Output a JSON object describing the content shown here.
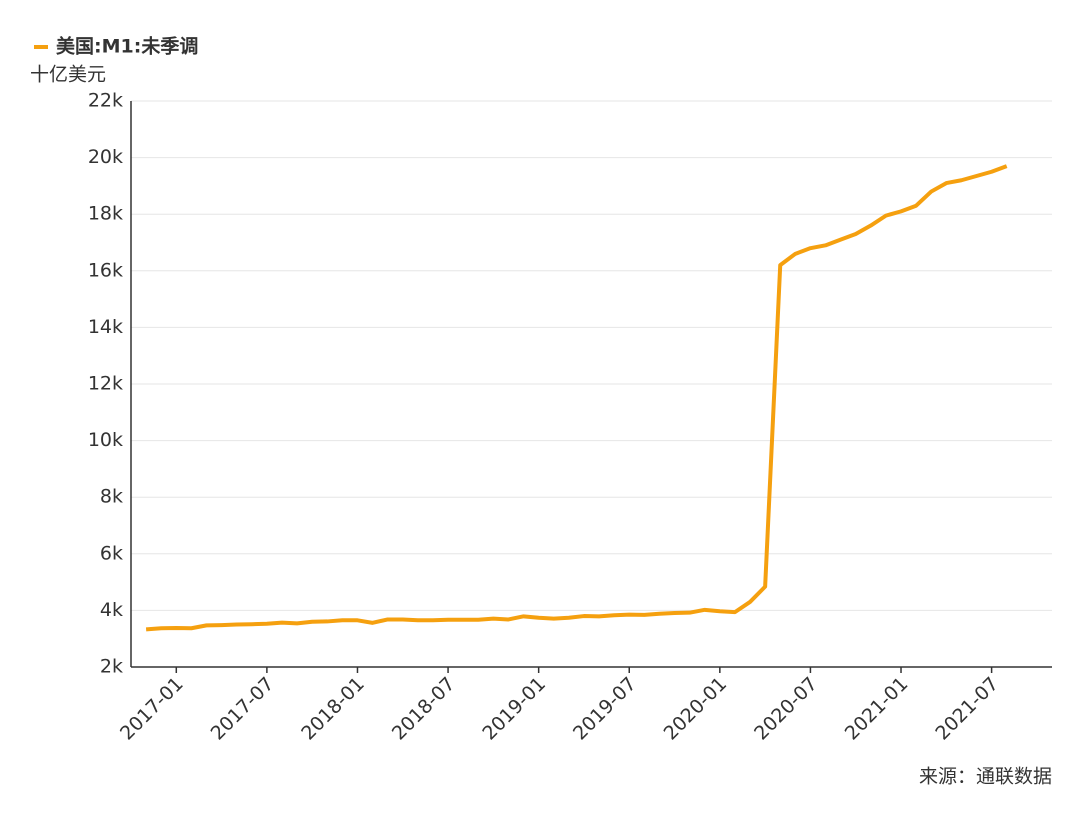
{
  "chart_data": {
    "type": "line",
    "legend_label": "美国:M1:未季调",
    "unit": "十亿美元",
    "source": "来源：通联数据",
    "x": [
      "2016-11",
      "2016-12",
      "2017-01",
      "2017-02",
      "2017-03",
      "2017-04",
      "2017-05",
      "2017-06",
      "2017-07",
      "2017-08",
      "2017-09",
      "2017-10",
      "2017-11",
      "2017-12",
      "2018-01",
      "2018-02",
      "2018-03",
      "2018-04",
      "2018-05",
      "2018-06",
      "2018-07",
      "2018-08",
      "2018-09",
      "2018-10",
      "2018-11",
      "2018-12",
      "2019-01",
      "2019-02",
      "2019-03",
      "2019-04",
      "2019-05",
      "2019-06",
      "2019-07",
      "2019-08",
      "2019-09",
      "2019-10",
      "2019-11",
      "2019-12",
      "2020-01",
      "2020-02",
      "2020-03",
      "2020-04",
      "2020-05",
      "2020-06",
      "2020-07",
      "2020-08",
      "2020-09",
      "2020-10",
      "2020-11",
      "2020-12",
      "2021-01",
      "2021-02",
      "2021-03",
      "2021-04",
      "2021-05",
      "2021-06",
      "2021-07",
      "2021-08"
    ],
    "series": [
      {
        "name": "美国:M1:未季调",
        "color": "#f5a00f",
        "values": [
          3330,
          3370,
          3380,
          3370,
          3470,
          3480,
          3500,
          3510,
          3530,
          3570,
          3540,
          3600,
          3610,
          3650,
          3650,
          3560,
          3680,
          3680,
          3650,
          3650,
          3670,
          3670,
          3670,
          3710,
          3680,
          3790,
          3740,
          3710,
          3740,
          3800,
          3790,
          3830,
          3850,
          3840,
          3880,
          3910,
          3920,
          4020,
          3970,
          3940,
          4300,
          4840,
          16200,
          16600,
          16800,
          16900,
          17100,
          17300,
          17600,
          17950,
          18100,
          18300,
          18800,
          19100,
          19200,
          19350,
          19500,
          19700
        ]
      }
    ],
    "xlim": [
      "2016-10",
      "2021-11"
    ],
    "xticks": [
      "2017-01",
      "2017-07",
      "2018-01",
      "2018-07",
      "2019-01",
      "2019-07",
      "2020-01",
      "2020-07",
      "2021-01",
      "2021-07"
    ],
    "ylim": [
      2000,
      22000
    ],
    "yticks": [
      {
        "value": 2000,
        "label": "2k"
      },
      {
        "value": 4000,
        "label": "4k"
      },
      {
        "value": 6000,
        "label": "6k"
      },
      {
        "value": 8000,
        "label": "8k"
      },
      {
        "value": 10000,
        "label": "10k"
      },
      {
        "value": 12000,
        "label": "12k"
      },
      {
        "value": 14000,
        "label": "14k"
      },
      {
        "value": 16000,
        "label": "16k"
      },
      {
        "value": 18000,
        "label": "18k"
      },
      {
        "value": 20000,
        "label": "20k"
      },
      {
        "value": 22000,
        "label": "22k"
      }
    ],
    "grid": true
  }
}
